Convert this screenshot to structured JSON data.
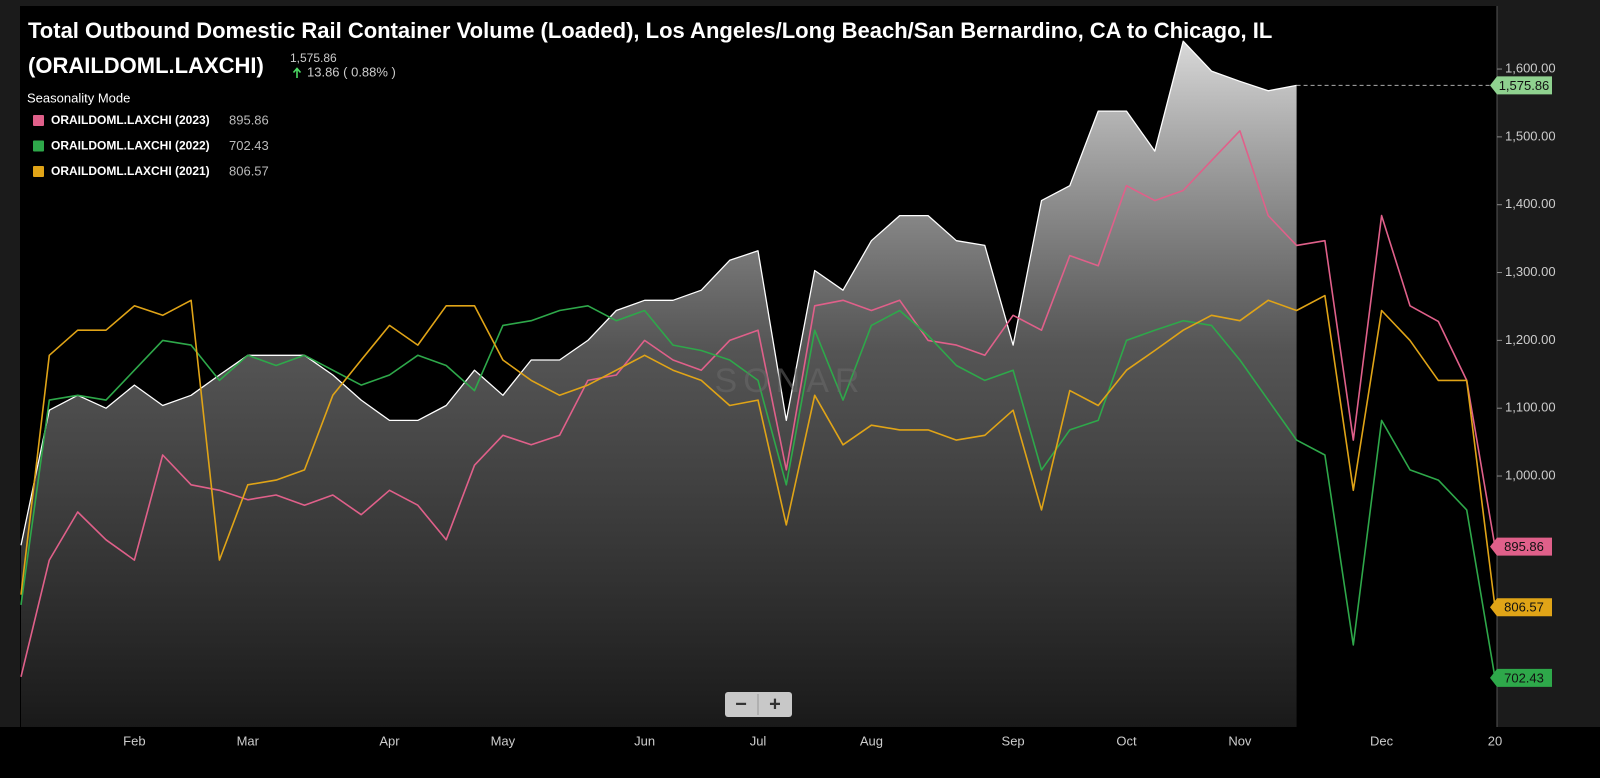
{
  "chart_data": {
    "type": "line",
    "title": "Total Outbound Domestic Rail Container Volume (Loaded), Los Angeles/Long Beach/San Bernardino, CA to Chicago, IL",
    "subtitle": "(ORAILDOML.LAXCHI)",
    "header_value": "1,575.86",
    "header_change": "13.86 ( 0.88% )",
    "legend_title": "Seasonality Mode",
    "watermark": "SONAR",
    "zoom_out": "−",
    "zoom_in": "+",
    "categories": [
      null,
      null,
      null,
      null,
      "Feb",
      null,
      null,
      null,
      "Mar",
      null,
      null,
      null,
      null,
      "Apr",
      null,
      null,
      null,
      "May",
      null,
      null,
      null,
      null,
      "Jun",
      null,
      null,
      null,
      "Jul",
      null,
      null,
      null,
      "Aug",
      null,
      null,
      null,
      null,
      "Sep",
      null,
      null,
      null,
      "Oct",
      null,
      null,
      null,
      "Nov",
      null,
      null,
      null,
      null,
      "Dec",
      null,
      null,
      null,
      "20"
    ],
    "series": [
      {
        "color": "#ffffff",
        "values": [
          898,
          1097,
          1119,
          1100,
          1134,
          1104,
          1119,
          1149,
          1178,
          1178,
          1178,
          1149,
          1112,
          1082,
          1082,
          1104,
          1156,
          1119,
          1171,
          1171,
          1200,
          1244,
          1259,
          1259,
          1274,
          1318,
          1332,
          1082,
          1303,
          1274,
          1347,
          1384,
          1384,
          1347,
          1340,
          1193,
          1406,
          1428,
          1538,
          1538,
          1479,
          1641,
          1597,
          1582,
          1568,
          1575.86,
          null,
          null,
          null,
          null,
          null,
          null,
          null
        ]
      },
      {
        "name": "ORAILDOML.LAXCHI (2023)",
        "color": "#e0608a",
        "values": [
          704,
          876,
          947,
          906,
          876,
          1031,
          987,
          979,
          965,
          972,
          957,
          972,
          943,
          979,
          957,
          906,
          1016,
          1060,
          1046,
          1060,
          1141,
          1149,
          1200,
          1171,
          1156,
          1200,
          1215,
          1009,
          1251,
          1259,
          1244,
          1259,
          1200,
          1193,
          1178,
          1237,
          1215,
          1325,
          1310,
          1428,
          1406,
          1421,
          1465,
          1509,
          1384,
          1340,
          1347,
          1053,
          1384,
          1251,
          1228,
          1141,
          895.86
        ]
      },
      {
        "name": "ORAILDOML.LAXCHI (2022)",
        "color": "#2ea84a",
        "values": [
          810,
          1112,
          1119,
          1112,
          1156,
          1200,
          1193,
          1141,
          1178,
          1163,
          1178,
          1156,
          1134,
          1149,
          1178,
          1163,
          1126,
          1222,
          1229,
          1244,
          1251,
          1229,
          1244,
          1193,
          1185,
          1171,
          1141,
          987,
          1215,
          1112,
          1222,
          1244,
          1207,
          1163,
          1141,
          1156,
          1009,
          1068,
          1082,
          1200,
          1215,
          1229,
          1222,
          1171,
          1112,
          1053,
          1031,
          751,
          1082,
          1009,
          994,
          950,
          702.43
        ]
      },
      {
        "name": "ORAILDOML.LAXCHI (2021)",
        "color": "#e0a417",
        "values": [
          825,
          1178,
          1215,
          1215,
          1251,
          1237,
          1259,
          876,
          987,
          994,
          1009,
          1119,
          1171,
          1222,
          1193,
          1251,
          1251,
          1171,
          1141,
          1119,
          1134,
          1156,
          1178,
          1156,
          1141,
          1104,
          1112,
          928,
          1119,
          1046,
          1075,
          1068,
          1068,
          1053,
          1060,
          1097,
          950,
          1126,
          1104,
          1156,
          1185,
          1215,
          1237,
          1229,
          1259,
          1244,
          1266,
          979,
          1244,
          1200,
          1141,
          1141,
          806.57
        ]
      }
    ],
    "ylim": [
      630,
      1690
    ],
    "yticks": [
      {
        "value": 1000,
        "label": "1,000.00"
      },
      {
        "value": 1100,
        "label": "1,100.00"
      },
      {
        "value": 1200,
        "label": "1,200.00"
      },
      {
        "value": 1300,
        "label": "1,300.00"
      },
      {
        "value": 1400,
        "label": "1,400.00"
      },
      {
        "value": 1500,
        "label": "1,500.00"
      },
      {
        "value": 1600,
        "label": "1,600.00"
      }
    ],
    "grid": false
  }
}
